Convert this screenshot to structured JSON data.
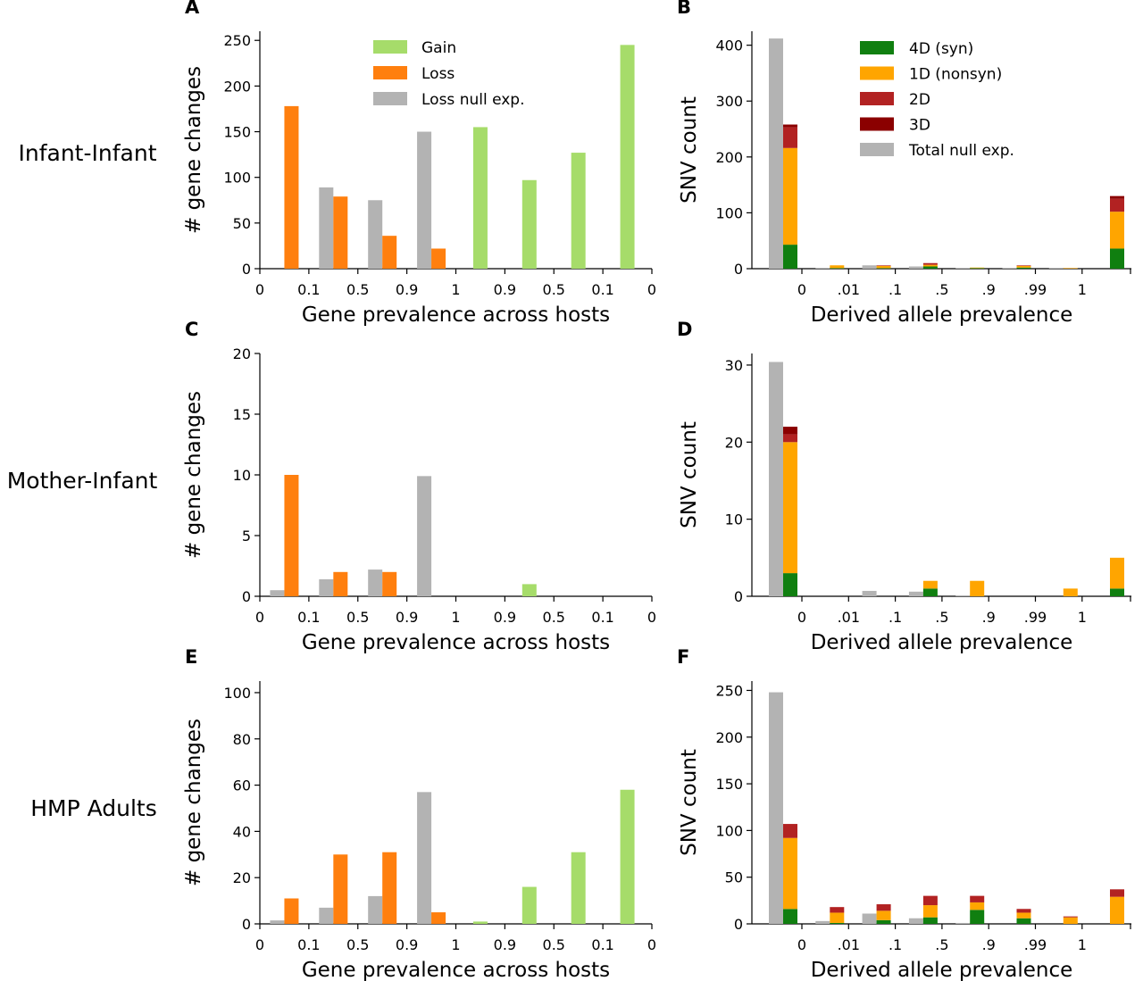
{
  "row_labels": [
    "Infant-Infant",
    "Mother-Infant",
    "HMP Adults"
  ],
  "colors": {
    "gain": "#a6dc6a",
    "loss": "#ff7f0e",
    "null": "#b3b3b3",
    "d4": "#107f10",
    "d1": "#ffa500",
    "d2": "#b22222",
    "d3": "#8b0000"
  },
  "gene_legend": [
    "Gain",
    "Loss",
    "Loss null exp."
  ],
  "snv_legend": [
    "4D (syn)",
    "1D (nonsyn)",
    "2D",
    "3D",
    "Total null exp."
  ],
  "chart_data": [
    {
      "panel": "A",
      "type": "bar",
      "xlabel": "Gene prevalence across hosts",
      "ylabel": "# gene changes",
      "ylim": [
        0,
        260
      ],
      "yticks": [
        0,
        50,
        100,
        150,
        200,
        250
      ],
      "xticklabels": [
        "0",
        "0.1",
        "0.5",
        "0.9",
        "1",
        "0.9",
        "0.5",
        "0.1",
        "0"
      ],
      "series": [
        {
          "name": "Loss null exp.",
          "values": [
            0,
            89,
            75,
            150
          ]
        },
        {
          "name": "Loss",
          "values": [
            178,
            79,
            36,
            22
          ]
        },
        {
          "name": "Gain",
          "values": [
            155,
            97,
            127,
            245
          ]
        }
      ]
    },
    {
      "panel": "B",
      "type": "bar",
      "xlabel": "Derived allele prevalence",
      "ylabel": "SNV count",
      "ylim": [
        0,
        425
      ],
      "yticks": [
        0,
        100,
        200,
        300,
        400
      ],
      "xticklabels": [
        "0",
        ".01",
        ".1",
        ".5",
        ".9",
        ".99",
        "1"
      ],
      "null": [
        412,
        1,
        6,
        4,
        1,
        1,
        1
      ],
      "series": [
        {
          "name": "4D (syn)",
          "values": [
            43,
            1,
            1,
            4,
            1,
            2,
            0,
            36
          ]
        },
        {
          "name": "1D (nonsyn)",
          "values": [
            173,
            5,
            4,
            3,
            1,
            3,
            1,
            66
          ]
        },
        {
          "name": "2D",
          "values": [
            37,
            0,
            1,
            3,
            0,
            1,
            0,
            23
          ]
        },
        {
          "name": "3D",
          "values": [
            5,
            0,
            0,
            0,
            0,
            0,
            0,
            5
          ]
        }
      ]
    },
    {
      "panel": "C",
      "type": "bar",
      "xlabel": "Gene prevalence across hosts",
      "ylabel": "# gene changes",
      "ylim": [
        0,
        20
      ],
      "yticks": [
        0,
        5,
        10,
        15,
        20
      ],
      "xticklabels": [
        "0",
        "0.1",
        "0.5",
        "0.9",
        "1",
        "0.9",
        "0.5",
        "0.1",
        "0"
      ],
      "series": [
        {
          "name": "Loss null exp.",
          "values": [
            0.5,
            1.4,
            2.2,
            9.9
          ]
        },
        {
          "name": "Loss",
          "values": [
            10,
            2,
            2,
            0
          ]
        },
        {
          "name": "Gain",
          "values": [
            0,
            1,
            0,
            0
          ]
        }
      ]
    },
    {
      "panel": "D",
      "type": "bar",
      "xlabel": "Derived allele prevalence",
      "ylabel": "SNV count",
      "ylim": [
        0,
        31.5
      ],
      "yticks": [
        0,
        10,
        20,
        30
      ],
      "xticklabels": [
        "0",
        ".01",
        ".1",
        ".5",
        ".9",
        ".99",
        "1"
      ],
      "null": [
        30.4,
        0,
        0.7,
        0.6,
        0.1,
        0,
        0
      ],
      "series": [
        {
          "name": "4D (syn)",
          "values": [
            3,
            0,
            0,
            1,
            0,
            0,
            0,
            1
          ]
        },
        {
          "name": "1D (nonsyn)",
          "values": [
            17,
            0,
            0,
            1,
            2,
            0,
            1,
            4
          ]
        },
        {
          "name": "2D",
          "values": [
            1,
            0,
            0,
            0,
            0,
            0,
            0,
            0
          ]
        },
        {
          "name": "3D",
          "values": [
            1,
            0,
            0,
            0,
            0,
            0,
            0,
            0
          ]
        }
      ]
    },
    {
      "panel": "E",
      "type": "bar",
      "xlabel": "Gene prevalence across hosts",
      "ylabel": "# gene changes",
      "ylim": [
        0,
        105
      ],
      "yticks": [
        0,
        20,
        40,
        60,
        80,
        100
      ],
      "xticklabels": [
        "0",
        "0.1",
        "0.5",
        "0.9",
        "1",
        "0.9",
        "0.5",
        "0.1",
        "0"
      ],
      "series": [
        {
          "name": "Loss null exp.",
          "values": [
            1.5,
            7,
            12,
            57
          ]
        },
        {
          "name": "Loss",
          "values": [
            11,
            30,
            31,
            5
          ]
        },
        {
          "name": "Gain",
          "values": [
            1,
            16,
            31,
            58
          ]
        }
      ]
    },
    {
      "panel": "F",
      "type": "bar",
      "xlabel": "Derived allele prevalence",
      "ylabel": "SNV count",
      "ylim": [
        0,
        260
      ],
      "yticks": [
        0,
        50,
        100,
        150,
        200,
        250
      ],
      "xticklabels": [
        "0",
        ".01",
        ".1",
        ".5",
        ".9",
        ".99",
        "1"
      ],
      "null": [
        248,
        3,
        11,
        6,
        1,
        0,
        0
      ],
      "series": [
        {
          "name": "4D (syn)",
          "values": [
            16,
            1,
            4,
            7,
            15,
            6,
            0,
            0
          ]
        },
        {
          "name": "1D (nonsyn)",
          "values": [
            76,
            11,
            10,
            13,
            8,
            6,
            7,
            29
          ]
        },
        {
          "name": "2D",
          "values": [
            15,
            6,
            7,
            10,
            7,
            4,
            1,
            8
          ]
        },
        {
          "name": "3D",
          "values": [
            0,
            0,
            0,
            0,
            0,
            0,
            0,
            0
          ]
        }
      ]
    }
  ]
}
